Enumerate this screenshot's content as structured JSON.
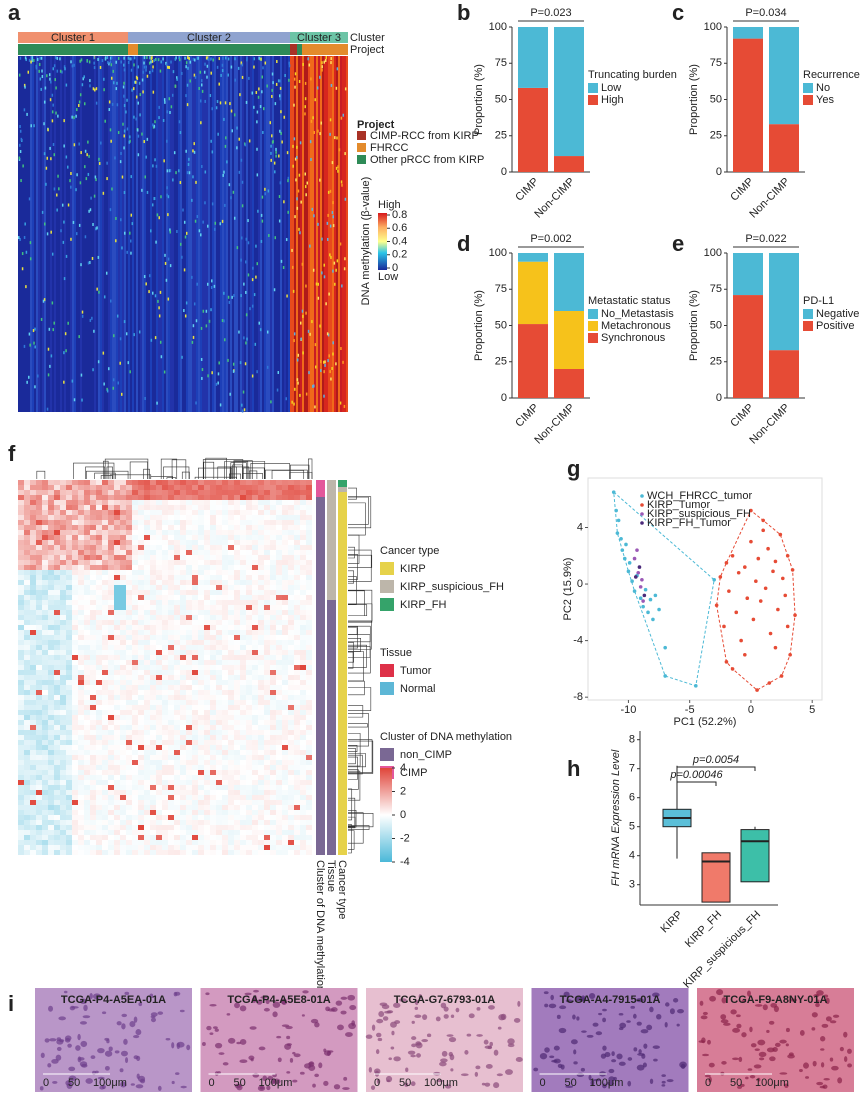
{
  "panel_letters": [
    "a",
    "b",
    "c",
    "d",
    "e",
    "f",
    "g",
    "h",
    "i"
  ],
  "heatmap_a": {
    "cluster_label": "Cluster",
    "project_label": "Project",
    "clusters": [
      "Cluster 1",
      "Cluster 2",
      "Cluster 3"
    ],
    "cluster_colors": [
      "#f0906e",
      "#8fa3cf",
      "#6cc4a6"
    ],
    "legend_title": "Project",
    "legend_items": [
      {
        "name": "CIMP-RCC from KIRP",
        "color": "#a93226"
      },
      {
        "name": "FHRCC",
        "color": "#e38b2c"
      },
      {
        "name": "Other pRCC from KIRP",
        "color": "#2e8b57"
      }
    ],
    "colorbar_title": "DNA methylation (β-value)",
    "colorbar_high": "High",
    "colorbar_low": "Low",
    "colorbar_ticks": [
      0.8,
      0.6,
      0.4,
      0.2,
      0
    ]
  },
  "heatmap_f": {
    "annotation_labels": [
      "Cluster of DNA methylation",
      "Tissue",
      "Cancer type"
    ],
    "legends": [
      {
        "title": "Cancer type",
        "items": [
          {
            "name": "KIRP",
            "color": "#e6d24a"
          },
          {
            "name": "KIRP_suspicious_FH",
            "color": "#bdb6aa"
          },
          {
            "name": "KIRP_FH",
            "color": "#35a36a"
          }
        ]
      },
      {
        "title": "Tissue",
        "items": [
          {
            "name": "Tumor",
            "color": "#de3148"
          },
          {
            "name": "Normal",
            "color": "#5db7d6"
          }
        ]
      },
      {
        "title": "Cluster of DNA methylation",
        "items": [
          {
            "name": "non_CIMP",
            "color": "#7a6894"
          },
          {
            "name": "CIMP",
            "color": "#e3589b"
          }
        ]
      }
    ],
    "colorbar_ticks": [
      4,
      2,
      0,
      -2,
      -4
    ]
  },
  "chart_data": [
    {
      "type": "bar",
      "stacked": true,
      "annotation": "P=0.023",
      "y_label": "Proportion (%)",
      "legend_title": "Truncating burden",
      "categories": [
        "CIMP",
        "Non-CIMP"
      ],
      "series": [
        {
          "name": "Low",
          "color": "#4cb9d5",
          "values": [
            42,
            89
          ]
        },
        {
          "name": "High",
          "color": "#e64b35",
          "values": [
            58,
            11
          ]
        }
      ],
      "ylim": [
        0,
        100
      ],
      "yticks": [
        0,
        25,
        50,
        75,
        100
      ]
    },
    {
      "type": "bar",
      "stacked": true,
      "annotation": "P=0.034",
      "y_label": "Proportion (%)",
      "legend_title": "Recurrence",
      "categories": [
        "CIMP",
        "Non-CIMP"
      ],
      "series": [
        {
          "name": "No",
          "color": "#4cb9d5",
          "values": [
            8,
            67
          ]
        },
        {
          "name": "Yes",
          "color": "#e64b35",
          "values": [
            92,
            33
          ]
        }
      ],
      "ylim": [
        0,
        100
      ],
      "yticks": [
        0,
        25,
        50,
        75,
        100
      ]
    },
    {
      "type": "bar",
      "stacked": true,
      "annotation": "P=0.002",
      "y_label": "Proportion (%)",
      "legend_title": "Metastatic status",
      "categories": [
        "CIMP",
        "Non-CIMP"
      ],
      "series": [
        {
          "name": "No_Metastasis",
          "color": "#4cb9d5",
          "values": [
            6,
            40
          ]
        },
        {
          "name": "Metachronous",
          "color": "#f6c21b",
          "values": [
            43,
            40
          ]
        },
        {
          "name": "Synchronous",
          "color": "#e64b35",
          "values": [
            51,
            20
          ]
        }
      ],
      "ylim": [
        0,
        100
      ],
      "yticks": [
        0,
        25,
        50,
        75,
        100
      ]
    },
    {
      "type": "bar",
      "stacked": true,
      "annotation": "P=0.022",
      "y_label": "Proportion (%)",
      "legend_title": "PD-L1",
      "categories": [
        "CIMP",
        "Non-CIMP"
      ],
      "series": [
        {
          "name": "Negative",
          "color": "#4cb9d5",
          "values": [
            29,
            67
          ]
        },
        {
          "name": "Positive",
          "color": "#e64b35",
          "values": [
            71,
            33
          ]
        }
      ],
      "ylim": [
        0,
        100
      ],
      "yticks": [
        0,
        25,
        50,
        75,
        100
      ]
    },
    {
      "type": "scatter",
      "x_label": "PC1 (52.2%)",
      "y_label": "PC2 (15.9%)",
      "xlim": [
        -13.3,
        5.8
      ],
      "ylim": [
        -8.2,
        7.5
      ],
      "xticks": [
        -10,
        -5,
        0,
        5
      ],
      "yticks": [
        -8,
        -4,
        0,
        4
      ],
      "series": [
        {
          "name": "WCH_FHRCC_tumor",
          "color": "#4cb9d5",
          "hull": true,
          "x": [
            -11.2,
            -11,
            -10.8,
            -10.9,
            -10.6,
            -10.5,
            -10.3,
            -10.2,
            -10,
            -9.9,
            -9.7,
            -9.5,
            -9.3,
            -9,
            -8.8,
            -8.6,
            -8.4,
            -8.2,
            -8,
            -7.8,
            -7.5,
            -7,
            -7,
            -4.5,
            -3
          ],
          "y": [
            6.5,
            5.2,
            4.5,
            3.6,
            3.2,
            2.4,
            1.8,
            2.8,
            0.9,
            1.5,
            0.2,
            -0.5,
            0.6,
            -1,
            -1.6,
            -0.4,
            -2,
            -1.1,
            -2.5,
            -0.8,
            -1.8,
            -4.5,
            -6.5,
            -7.2,
            0.3
          ]
        },
        {
          "name": "KIRP_Tumor",
          "color": "#e64b35",
          "hull": true,
          "x": [
            -2.8,
            -2.5,
            -2.2,
            -2,
            -1.8,
            -1.5,
            -1.2,
            -1,
            -0.8,
            -0.5,
            -0.3,
            0,
            0.2,
            0.4,
            0.6,
            0.8,
            1,
            1.2,
            1.4,
            1.6,
            1.8,
            2,
            2.2,
            2.4,
            2.6,
            2.8,
            3,
            3.2,
            3.4,
            3.6,
            -1.5,
            0.5,
            1.5,
            2.5,
            -0.5,
            1,
            2,
            3,
            -2,
            0
          ],
          "y": [
            -1.5,
            0.5,
            -3,
            1.5,
            -0.5,
            2,
            -2,
            0.8,
            -4,
            1.2,
            -1,
            3,
            -2.5,
            0.2,
            1.8,
            -1.2,
            4.5,
            -0.3,
            2.5,
            -3.5,
            0.9,
            1.6,
            -1.8,
            3.5,
            0.4,
            -0.8,
            2,
            -5,
            1,
            -2.2,
            -6,
            -7.5,
            -7,
            -6.5,
            -5,
            3.8,
            -4.5,
            -3,
            -5.5,
            5.2
          ]
        },
        {
          "name": "KIRP_suspicious_FH",
          "color": "#9b59b6",
          "hull": false,
          "x": [
            -9.5,
            -9.2,
            -9,
            -8.8,
            -9.3,
            -8.9
          ],
          "y": [
            1.8,
            0.8,
            -0.2,
            -1.2,
            2.4,
            0.3
          ]
        },
        {
          "name": "KIRP_FH_Tumor",
          "color": "#4b2a7a",
          "hull": false,
          "x": [
            -9.1,
            -8.7,
            -9.4
          ],
          "y": [
            1.2,
            -0.8,
            0.5
          ]
        }
      ]
    },
    {
      "type": "box",
      "y_label": "FH mRNA Expression Level",
      "categories": [
        "KIRP",
        "KIRP_FH",
        "KIRP_suspicious_FH"
      ],
      "colors": [
        "#5bbfd8",
        "#f07a6a",
        "#3dbfa8"
      ],
      "min": [
        3.9,
        2.4,
        3.1
      ],
      "q1": [
        5.0,
        2.4,
        3.1
      ],
      "median": [
        5.3,
        3.8,
        4.5
      ],
      "q3": [
        5.6,
        4.1,
        4.9
      ],
      "max": [
        7.1,
        4.1,
        5.0
      ],
      "annotations": [
        "p=0.00046",
        "p=0.0054"
      ],
      "ylim": [
        2.3,
        8.3
      ],
      "yticks": [
        3,
        4,
        5,
        6,
        7,
        8
      ]
    }
  ],
  "histology": {
    "images": [
      "TCGA-P4-A5EA-01A",
      "TCGA-P4-A5E8-01A",
      "TCGA-G7-6793-01A",
      "TCGA-A4-7915-01A",
      "TCGA-F9-A8NY-01A"
    ],
    "scale_labels": [
      "0",
      "50",
      "100μm"
    ]
  }
}
